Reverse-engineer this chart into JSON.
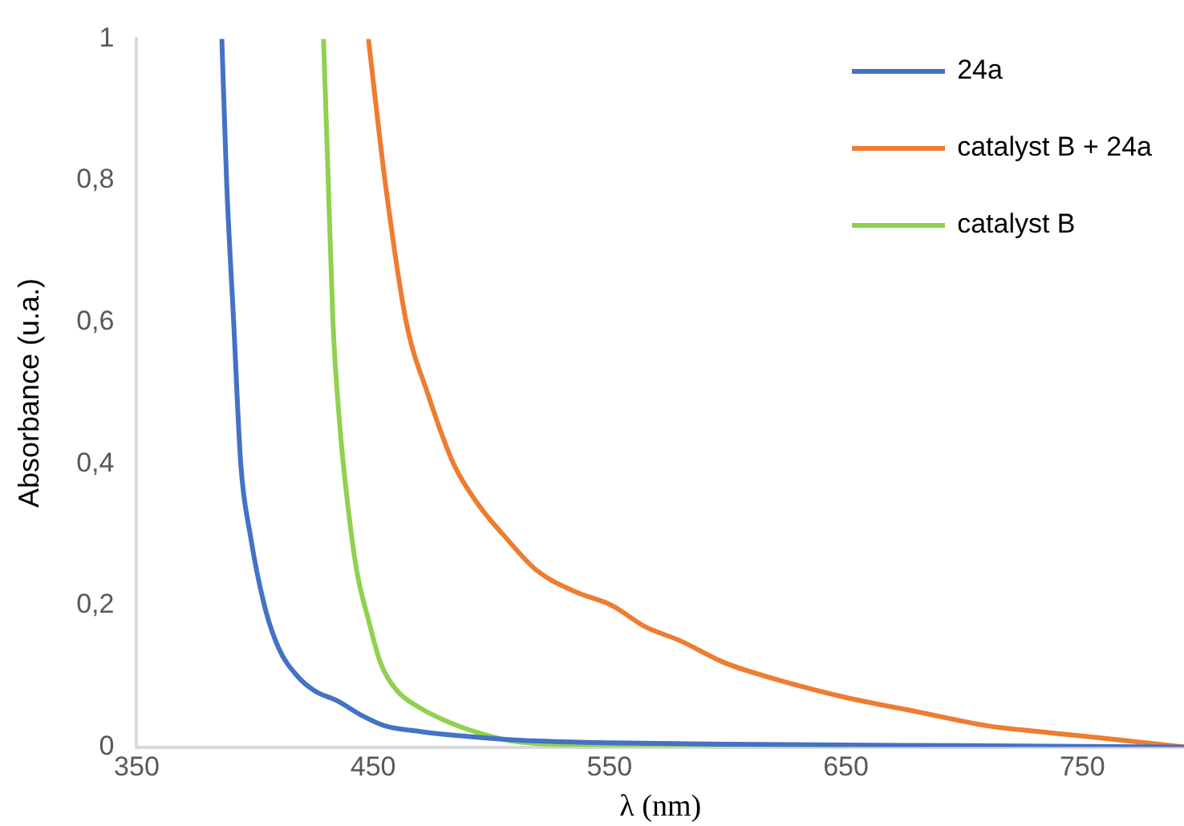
{
  "chart_data": {
    "type": "line",
    "xlabel": "λ (nm)",
    "ylabel": "Absorbance (u.a.)",
    "xlim": [
      350,
      793
    ],
    "xticks": [
      350,
      450,
      550,
      650,
      750
    ],
    "ylim": [
      0,
      1
    ],
    "yticks": [
      0,
      {
        "value": 0.2,
        "label": "0,2"
      },
      {
        "value": 0.4,
        "label": "0,4"
      },
      {
        "value": 0.6,
        "label": "0,6"
      },
      {
        "value": 0.8,
        "label": "0,8"
      },
      1
    ],
    "grid": false,
    "legend": "top right",
    "marker": "none",
    "line_style": "solid",
    "series": [
      {
        "name": "24a",
        "color": "#4472c4",
        "x": [
          386,
          388,
          391,
          394,
          398,
          404,
          410,
          418,
          425,
          435,
          445,
          455,
          470,
          490,
          510,
          550,
          600,
          700,
          793
        ],
        "values": [
          1,
          0.8,
          0.6,
          0.4,
          0.3,
          0.2,
          0.14,
          0.1,
          0.08,
          0.065,
          0.045,
          0.03,
          0.022,
          0.015,
          0.01,
          0.006,
          0.004,
          0.002,
          0
        ]
      },
      {
        "name": "catalyst B + 24a",
        "color": "#ed7d31",
        "x": [
          448,
          455,
          464,
          473,
          484,
          495,
          505,
          519,
          535,
          551,
          565,
          580,
          598,
          616,
          650,
          680,
          710,
          737,
          766,
          793
        ],
        "values": [
          1,
          0.8,
          0.6,
          0.5,
          0.4,
          0.34,
          0.3,
          0.25,
          0.22,
          0.2,
          0.17,
          0.15,
          0.12,
          0.1,
          0.07,
          0.05,
          0.03,
          0.02,
          0.01,
          0
        ]
      },
      {
        "name": "catalyst B",
        "color": "#92d050",
        "x": [
          429,
          431,
          433,
          436,
          439,
          443,
          448,
          453,
          460,
          470,
          480,
          490,
          500,
          510,
          525,
          550,
          600,
          650
        ],
        "values": [
          1,
          0.8,
          0.6,
          0.45,
          0.35,
          0.25,
          0.18,
          0.12,
          0.08,
          0.055,
          0.038,
          0.025,
          0.015,
          0.008,
          0.004,
          0.002,
          0.001,
          0
        ]
      }
    ]
  }
}
